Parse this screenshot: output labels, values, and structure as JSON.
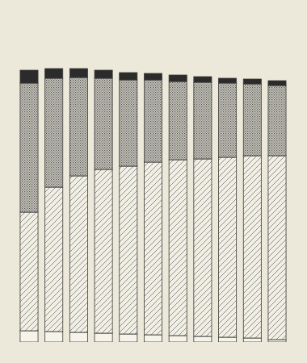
{
  "chart_data": {
    "type": "bar",
    "stacked": true,
    "tick_labels": false,
    "categories": [
      null,
      null,
      null,
      null,
      null,
      null,
      null,
      null,
      null,
      null,
      null
    ],
    "ylim": [
      0,
      340
    ],
    "series": [
      {
        "color": "#f6f4ea",
        "values": [
          14,
          13,
          12,
          11,
          10,
          9,
          8,
          7,
          6,
          5,
          3
        ]
      },
      {
        "color": "#f1efe3",
        "values": [
          147,
          179,
          194,
          203,
          208,
          214,
          218,
          220,
          223,
          226,
          228
        ]
      },
      {
        "color": "#c9c7bc",
        "values": [
          160,
          135,
          122,
          113,
          107,
          102,
          97,
          95,
          92,
          89,
          87
        ]
      },
      {
        "color": "#2b2b2b",
        "values": [
          16,
          12,
          11,
          10,
          9,
          8,
          8,
          7,
          6,
          6,
          6
        ]
      }
    ]
  }
}
